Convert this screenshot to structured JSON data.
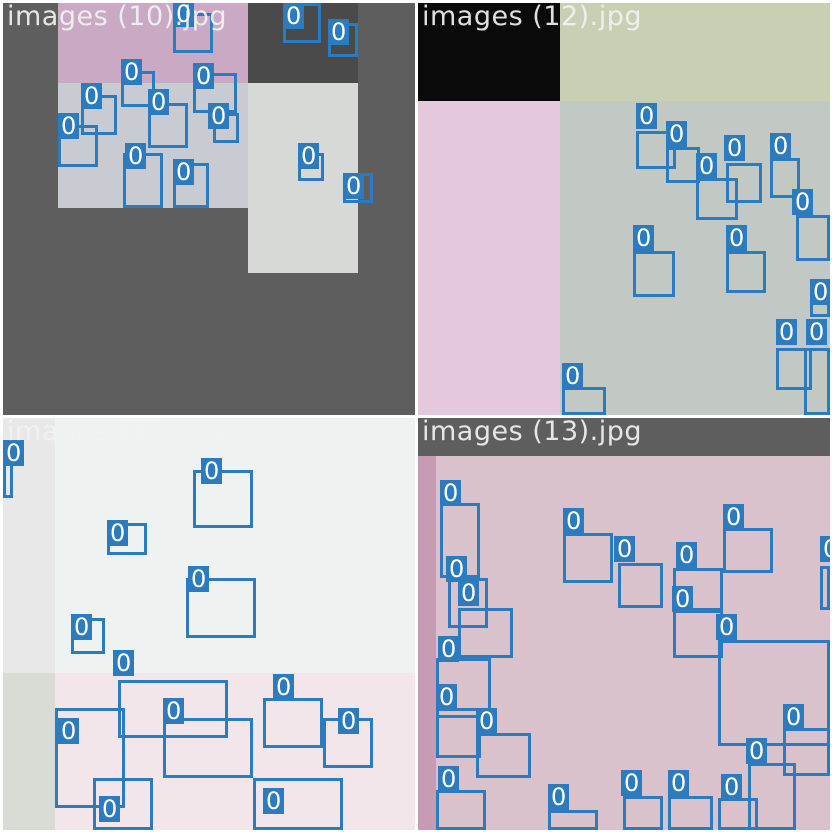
{
  "panels": [
    {
      "title": "images (10).jpg"
    },
    {
      "title": "images (12).jpg"
    },
    {
      "title": "images (11).jpg"
    },
    {
      "title": "images (13).jpg"
    }
  ],
  "detection_label": "0",
  "colors": {
    "box": "#2c7bbf",
    "background": "#5e5e5e",
    "title": "#f2f2f2"
  }
}
